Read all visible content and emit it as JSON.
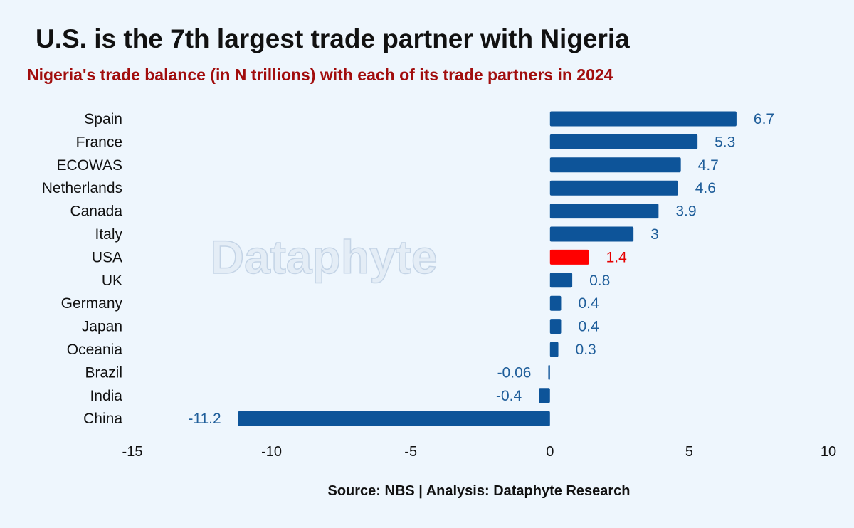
{
  "chart_data": {
    "type": "bar",
    "orientation": "horizontal",
    "title": "U.S. is the 7th largest trade partner with Nigeria",
    "subtitle": "Nigeria's trade balance (in N trillions) with each of its trade partners in 2024",
    "categories": [
      "Spain",
      "France",
      "ECOWAS",
      "Netherlands",
      "Canada",
      "Italy",
      "USA",
      "UK",
      "Germany",
      "Japan",
      "Oceania",
      "Brazil",
      "India",
      "China"
    ],
    "values": [
      6.7,
      5.3,
      4.7,
      4.6,
      3.9,
      3,
      1.4,
      0.8,
      0.4,
      0.4,
      0.3,
      -0.06,
      -0.4,
      -11.2
    ],
    "value_labels": [
      "6.7",
      "5.3",
      "4.7",
      "4.6",
      "3.9",
      "3",
      "1.4",
      "0.8",
      "0.4",
      "0.4",
      "0.3",
      "-0.06",
      "-0.4",
      "-11.2"
    ],
    "highlight": "USA",
    "xlim": [
      -15,
      10
    ],
    "xticks": [
      -15,
      -10,
      -5,
      0,
      5,
      10
    ],
    "xtick_labels": [
      "-15",
      "-10",
      "-5",
      "0",
      "5",
      "10"
    ],
    "grid": false,
    "colors": {
      "bar": "#0d5499",
      "highlight": "#ff0000",
      "label": "#1f5e9a",
      "highlight_label": "#e60000"
    }
  },
  "watermark": "Dataphyte",
  "source": "Source: NBS | Analysis: Dataphyte Research"
}
